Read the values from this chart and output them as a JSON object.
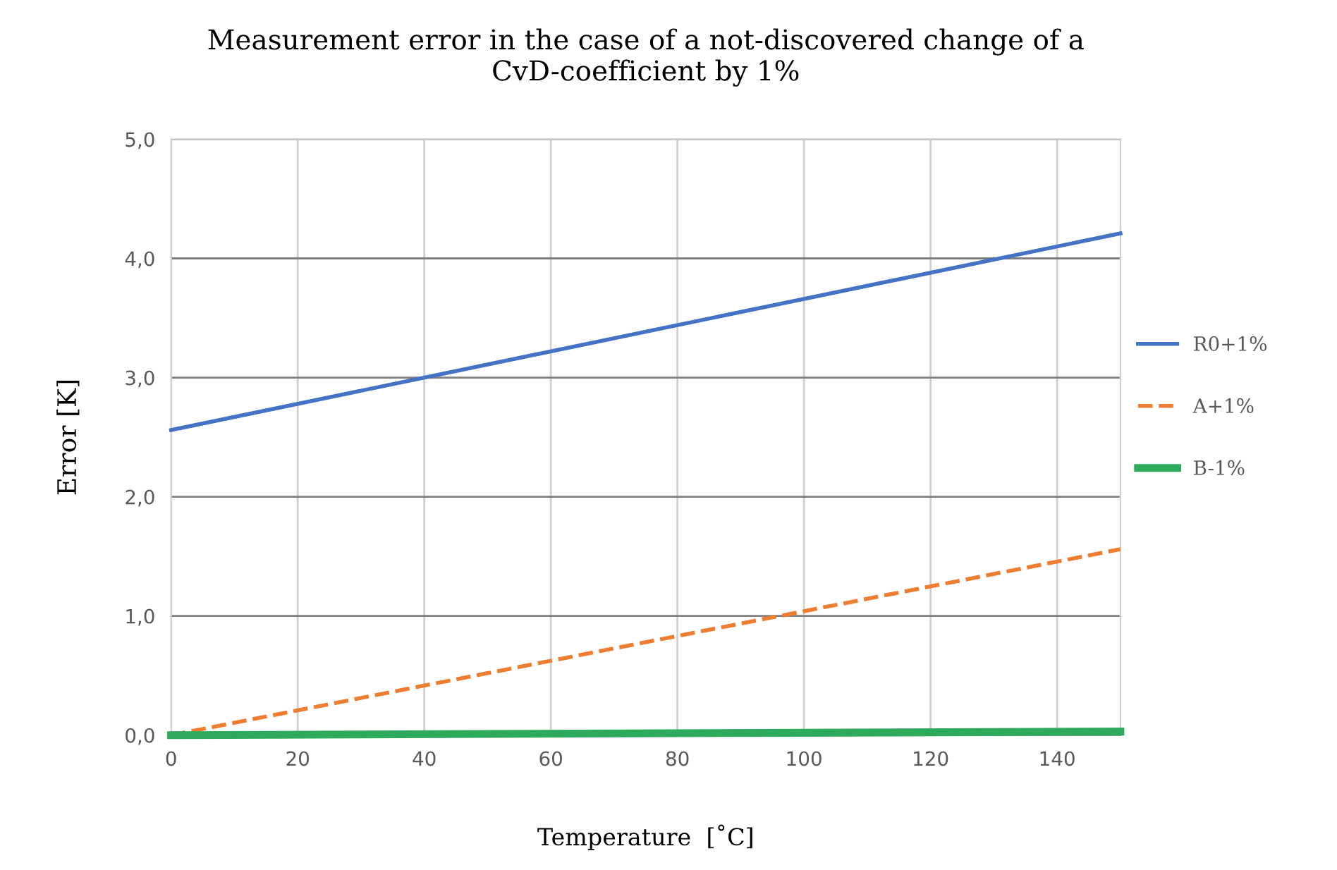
{
  "chart_data": {
    "type": "line",
    "title": "Measurement error in the case of a not-discovered change of a\nCvD-coefficient by 1%",
    "xlabel": "Temperature  [˚C]",
    "ylabel": "Error [K]",
    "x": [
      0,
      50,
      100,
      150
    ],
    "series": [
      {
        "name": "R0+1%",
        "color": "#4472c4",
        "values": [
          2.56,
          3.11,
          3.66,
          4.21
        ],
        "line_style": "solid"
      },
      {
        "name": "A+1%",
        "color": "#ed7d31",
        "values": [
          0,
          0.52,
          1.04,
          1.56
        ],
        "line_style": "dashed"
      },
      {
        "name": "B-1%",
        "color": "#2eaa5c",
        "values": [
          0,
          0.01,
          0.02,
          0.03
        ],
        "line_style": "solid"
      }
    ],
    "xlim": [
      0,
      150
    ],
    "xticks": [
      0,
      20,
      40,
      60,
      80,
      100,
      120,
      140
    ],
    "ylim": [
      0,
      5
    ],
    "yticks": [
      {
        "value": 0,
        "label": "0,0"
      },
      {
        "value": 1,
        "label": "1,0"
      },
      {
        "value": 2,
        "label": "2,0"
      },
      {
        "value": 3,
        "label": "3,0"
      },
      {
        "value": 4,
        "label": "4,0"
      },
      {
        "value": 5,
        "label": "5,0"
      }
    ],
    "grid": true,
    "legend": "right",
    "marker": "none"
  }
}
